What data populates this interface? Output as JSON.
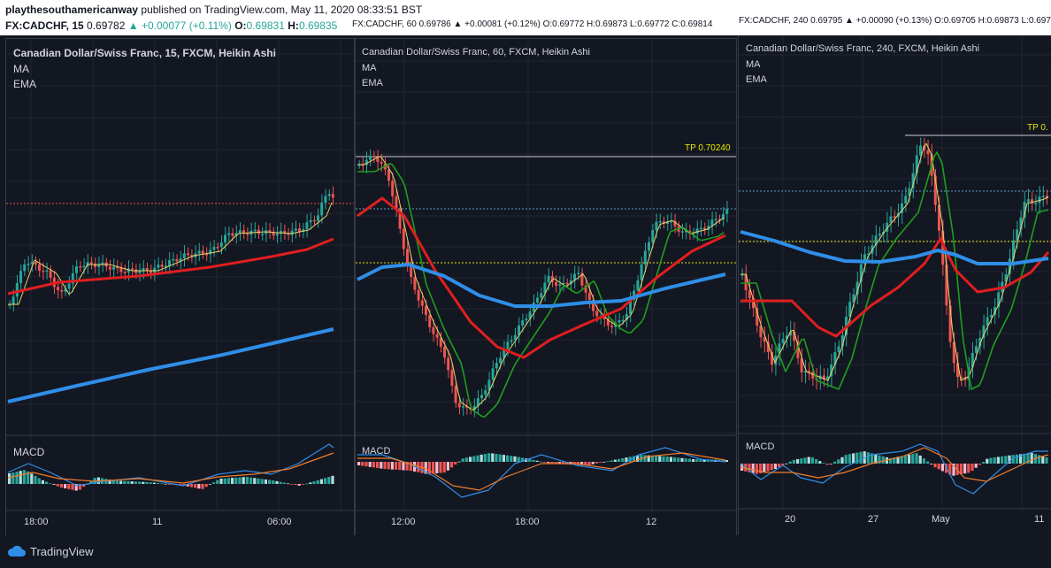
{
  "header": {
    "user": "playthesouthamericanway",
    "published": " published on TradingView.com, May 11, 2020 08:33:51 BST",
    "q1": {
      "sym": "FX:CADCHF, 15",
      "last": "0.69782",
      "chg": "▲ +0.00077 (+0.11%)",
      "o": "O:",
      "ov": "0.69831",
      "h": "H:",
      "hv": "0.69835"
    },
    "q2": "FX:CADCHF, 60 0.69786 ▲ +0.00081 (+0.12%) O:0.69772 H:0.69873 L:0.69772 C:0.69814",
    "q3": "FX:CADCHF, 240 0.69795 ▲ +0.00090 (+0.13%) O:0.69705 H:0.69873 L:0.697"
  },
  "panels": [
    {
      "title": "Canadian Dollar/Swiss Franc, 15, FXCM, Heikin Ashi",
      "ma": "MA",
      "ema": "EMA",
      "macd": "MACD",
      "ticks": [
        "18:00",
        "11",
        "06:00"
      ]
    },
    {
      "title": "Canadian Dollar/Swiss Franc, 60, FXCM, Heikin Ashi",
      "ma": "MA",
      "ema": "EMA",
      "macd": "MACD",
      "ticks": [
        "12:00",
        "18:00",
        "12"
      ],
      "tp": "TP 0.70240"
    },
    {
      "title": "Canadian Dollar/Swiss Franc, 240, FXCM, Heikin Ashi",
      "ma": "MA",
      "ema": "EMA",
      "macd": "MACD",
      "ticks": [
        "20",
        "27",
        "May",
        "11"
      ],
      "tp": "TP 0."
    }
  ],
  "brand": "TradingView",
  "colors": {
    "bg": "#131722",
    "up": "#26a69a",
    "down": "#ef5350",
    "ma": "#2f8ee8",
    "ema": "#e01e1e",
    "ema2": "#1e9e1e",
    "fast": "#e6d36b",
    "macd": "#2f8ee8",
    "signal": "#f07c2a"
  },
  "chart_data": [
    {
      "type": "candlestick",
      "timeframe": "15",
      "series": [
        {
          "name": "MA"
        },
        {
          "name": "EMA"
        }
      ],
      "indicator": "MACD"
    },
    {
      "type": "candlestick",
      "timeframe": "60",
      "series": [
        {
          "name": "MA"
        },
        {
          "name": "EMA"
        }
      ],
      "indicator": "MACD",
      "tp": 0.7024
    },
    {
      "type": "candlestick",
      "timeframe": "240",
      "series": [
        {
          "name": "MA"
        },
        {
          "name": "EMA"
        }
      ],
      "indicator": "MACD"
    }
  ]
}
